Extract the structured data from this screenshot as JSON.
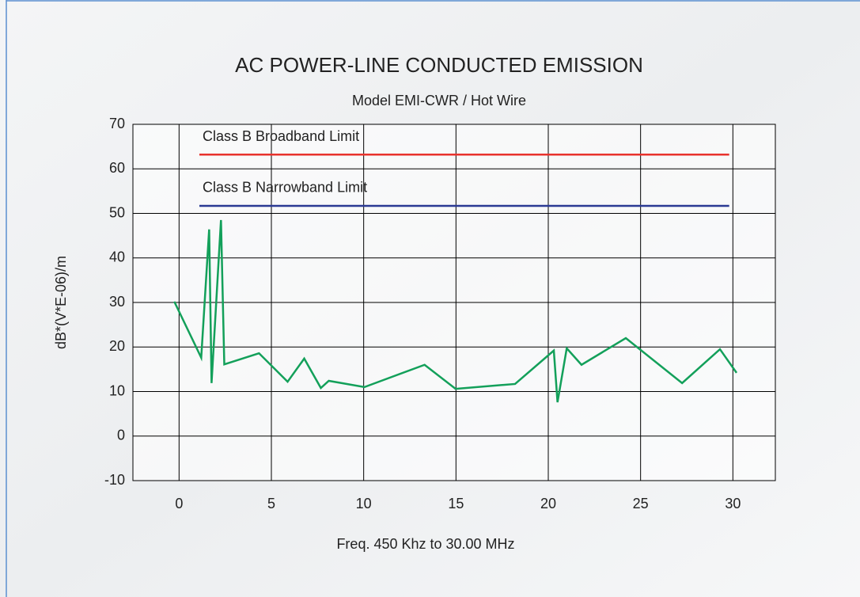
{
  "chart_data": {
    "type": "line",
    "title": "AC POWER-LINE CONDUCTED EMISSION",
    "subtitle": "Model EMI-CWR / Hot Wire",
    "xlabel": "Freq. 450 Khz to 30.00 MHz",
    "ylabel": "dB*(V*E-06)/m",
    "xlim": [
      -2.5,
      32.3
    ],
    "xticks": [
      0,
      5,
      10,
      15,
      20,
      25,
      30
    ],
    "ylim": [
      -10,
      70
    ],
    "yticks": [
      -10,
      0,
      10,
      20,
      30,
      40,
      50,
      60,
      70
    ],
    "grid": true,
    "series": [
      {
        "name": "Class B Broadband Limit",
        "color": "#e8322d",
        "x": [
          1.1,
          29.8
        ],
        "values": [
          63.2,
          63.2
        ]
      },
      {
        "name": "Class B Narrowband Limit",
        "color": "#2b3a94",
        "x": [
          1.1,
          29.8
        ],
        "values": [
          51.7,
          51.7
        ]
      },
      {
        "name": null,
        "color": "#13a05a",
        "x": [
          -0.26,
          1.2,
          1.63,
          1.76,
          2.27,
          2.45,
          4.33,
          5.88,
          6.78,
          7.68,
          8.11,
          10.04,
          13.3,
          14.98,
          18.2,
          20.3,
          20.5,
          21.0,
          21.8,
          24.2,
          27.25,
          29.3,
          30.2
        ],
        "values": [
          30.2,
          17.6,
          46.4,
          11.9,
          48.5,
          16.1,
          18.6,
          12.2,
          17.4,
          10.8,
          12.4,
          11.0,
          16.0,
          10.6,
          11.7,
          19.2,
          7.6,
          19.7,
          16.0,
          22.0,
          11.9,
          19.5,
          14.2
        ]
      }
    ]
  }
}
